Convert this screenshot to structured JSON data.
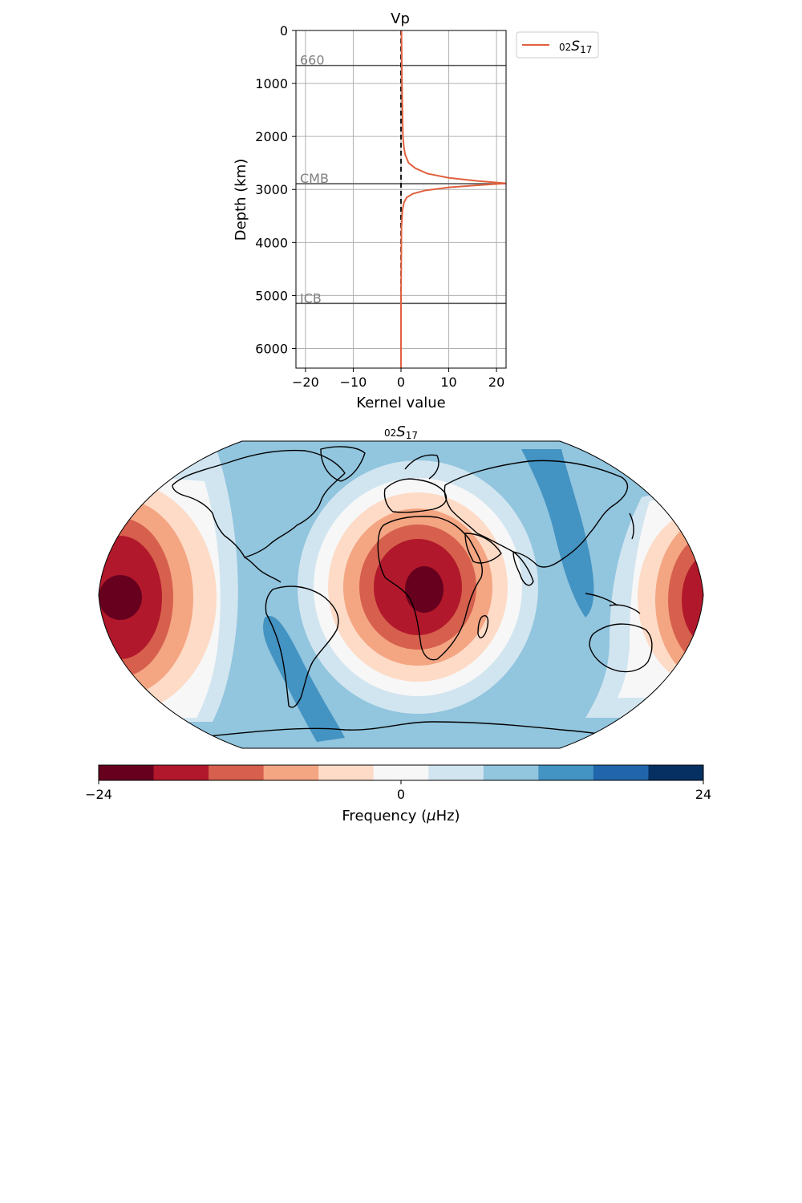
{
  "chart_data": [
    {
      "type": "line",
      "title": "Vp",
      "xlabel": "Kernel value",
      "ylabel": "Depth (km)",
      "xlim": [
        -22,
        22
      ],
      "ylim": [
        6371,
        0
      ],
      "y_inverted": true,
      "grid": true,
      "xticks": [
        -20,
        -10,
        0,
        10,
        20
      ],
      "xtick_labels": [
        "−20",
        "−10",
        "0",
        "10",
        "20"
      ],
      "yticks": [
        0,
        1000,
        2000,
        3000,
        4000,
        5000,
        6000
      ],
      "ytick_labels": [
        "0",
        "1000",
        "2000",
        "3000",
        "4000",
        "5000",
        "6000"
      ],
      "legend": {
        "position": "outside-top-right",
        "entries": [
          {
            "label_pre": "02",
            "label_main": "S",
            "label_sub": "17",
            "color": "#e0603e"
          }
        ]
      },
      "reference_lines": [
        {
          "label": "660",
          "depth": 660
        },
        {
          "label": "CMB",
          "depth": 2891
        },
        {
          "label": "ICB",
          "depth": 5150
        }
      ],
      "zero_line": {
        "x": 0,
        "style": "dashed",
        "color": "#000000"
      },
      "series": [
        {
          "color": "#e0603e",
          "points": [
            [
              0.1,
              0
            ],
            [
              0.15,
              500
            ],
            [
              0.2,
              1000
            ],
            [
              0.3,
              1500
            ],
            [
              0.4,
              2000
            ],
            [
              0.6,
              2200
            ],
            [
              0.9,
              2350
            ],
            [
              1.6,
              2500
            ],
            [
              3,
              2600
            ],
            [
              5.5,
              2700
            ],
            [
              10,
              2780
            ],
            [
              16,
              2840
            ],
            [
              22,
              2885
            ],
            [
              16,
              2920
            ],
            [
              10,
              2960
            ],
            [
              5,
              3020
            ],
            [
              2.5,
              3080
            ],
            [
              1.2,
              3150
            ],
            [
              0.6,
              3250
            ],
            [
              0.3,
              3400
            ],
            [
              0.1,
              3700
            ],
            [
              0.05,
              4500
            ],
            [
              0,
              5150
            ],
            [
              0,
              6371
            ]
          ]
        }
      ]
    },
    {
      "type": "heatmap",
      "title_pre": "02",
      "title_main": "S",
      "title_sub": "17",
      "projection": "Robinson",
      "colorbar": {
        "label": "Frequency (μHz)",
        "label_text": "Frequency (",
        "label_mu": "μ",
        "label_unit": "Hz)",
        "ticks": [
          -24,
          0,
          24
        ],
        "tick_labels": [
          "−24",
          "0",
          "24"
        ],
        "colors": [
          "#67001f",
          "#b2182b",
          "#d6604d",
          "#f4a582",
          "#fddbc7",
          "#f7f7f7",
          "#d1e5f0",
          "#92c5de",
          "#4393c3",
          "#2166ac",
          "#053061"
        ]
      },
      "pattern": "colour map of negative (red) and positive (blue) frequency anomalies; strongest negative anomaly centred near central Africa (~lon 20, lat 0) and again near lon ~-165 / +170 at the equator; positive (blue) bands over western South America, the western Pacific and Asia"
    }
  ]
}
